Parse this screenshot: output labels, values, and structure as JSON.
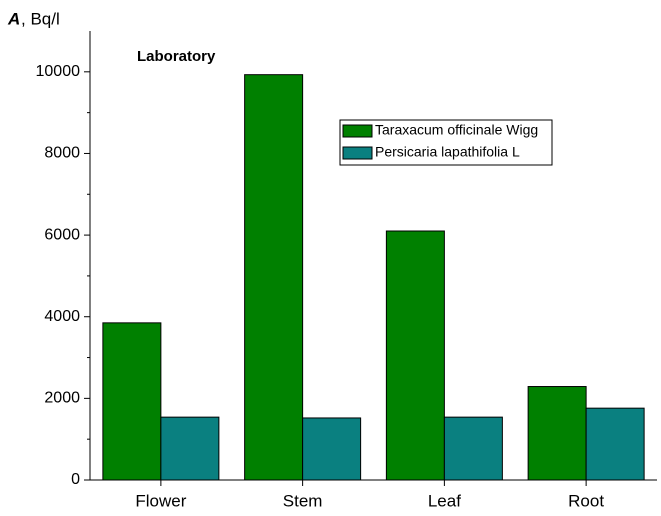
{
  "chart_data": {
    "type": "bar",
    "ylabel": {
      "symbol": "A",
      "unit": ", Bq/l"
    },
    "annotation": "Laboratory",
    "categories": [
      "Flower",
      "Stem",
      "Leaf",
      "Root"
    ],
    "series": [
      {
        "name": "Taraxacum officinale Wigg",
        "color": "#008000",
        "values": [
          3850,
          9930,
          6100,
          2290
        ]
      },
      {
        "name": "Persicaria lapathifolia L",
        "color": "#0a8080",
        "values": [
          1540,
          1520,
          1540,
          1760
        ]
      }
    ],
    "ylim": [
      0,
      11000
    ],
    "yticks": [
      0,
      2000,
      4000,
      6000,
      8000,
      10000
    ],
    "yticks_minor": [
      1000,
      3000,
      5000,
      7000,
      9000
    ],
    "legend": "upper right"
  }
}
